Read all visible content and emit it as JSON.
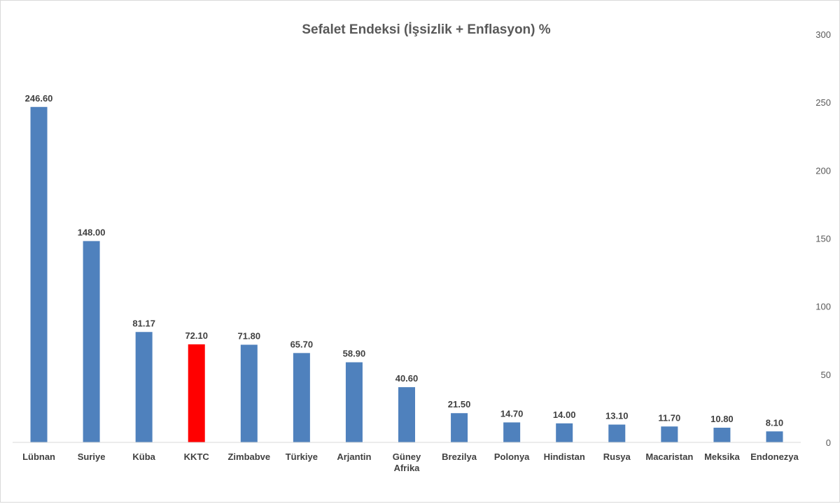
{
  "chart_data": {
    "type": "bar",
    "title": "Sefalet Endeksi (İşsizlik + Enflasyon) %",
    "categories": [
      [
        "Lübnan"
      ],
      [
        "Suriye"
      ],
      [
        "Küba"
      ],
      [
        "KKTC"
      ],
      [
        "Zimbabve"
      ],
      [
        "Türkiye"
      ],
      [
        "Arjantin"
      ],
      [
        "Güney",
        "Afrika"
      ],
      [
        "Brezilya"
      ],
      [
        "Polonya"
      ],
      [
        "Hindistan"
      ],
      [
        "Rusya"
      ],
      [
        "Macaristan"
      ],
      [
        "Meksika"
      ],
      [
        "Endonezya"
      ]
    ],
    "values": [
      246.6,
      148.0,
      81.17,
      72.1,
      71.8,
      65.7,
      58.9,
      40.6,
      21.5,
      14.7,
      14.0,
      13.1,
      11.7,
      10.8,
      8.1
    ],
    "value_labels": [
      "246.60",
      "148.00",
      "81.17",
      "72.10",
      "71.80",
      "65.70",
      "58.90",
      "40.60",
      "21.50",
      "14.70",
      "14.00",
      "13.10",
      "11.70",
      "10.80",
      "8.10"
    ],
    "ylim": [
      0,
      300
    ],
    "yticks": [
      0,
      50,
      100,
      150,
      200,
      250,
      300
    ],
    "y_axis_side": "right",
    "grid": false,
    "legend": "none",
    "colors": {
      "default_bar": "#4f81bd",
      "highlight_bar": "#ff0000"
    },
    "highlight_category": "KKTC"
  }
}
